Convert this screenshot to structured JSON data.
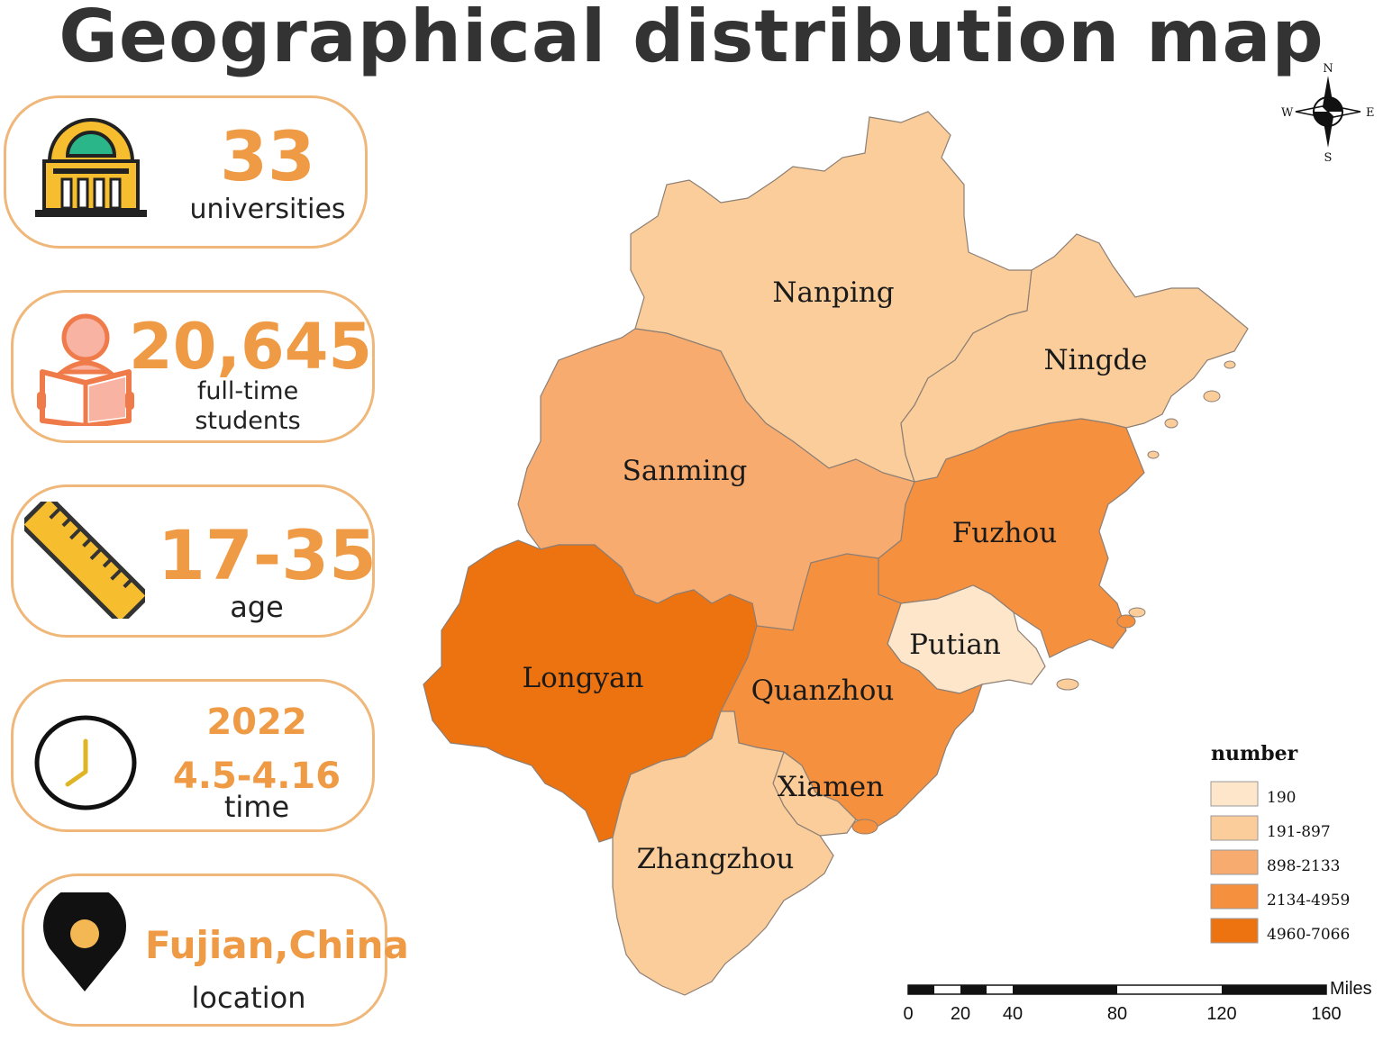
{
  "title": "Geographical distribution map",
  "stats": [
    {
      "value": "33",
      "label": "universities",
      "icon": "university-building-icon"
    },
    {
      "value": "20,645",
      "label_line1": "full-time",
      "label_line2": "students",
      "icon": "student-reading-icon"
    },
    {
      "value": "17-35",
      "label": "age",
      "icon": "ruler-icon"
    },
    {
      "value_line1": "2022",
      "value_line2": "4.5-4.16",
      "label": "time",
      "icon": "clock-icon"
    },
    {
      "value": "Fujian,China",
      "label": "location",
      "icon": "location-pin-icon"
    }
  ],
  "map": {
    "regions": [
      {
        "name": "Nanping",
        "color": "#fbcd9b"
      },
      {
        "name": "Ningde",
        "color": "#fbcd9b"
      },
      {
        "name": "Sanming",
        "color": "#f8ab6f"
      },
      {
        "name": "Fuzhou",
        "color": "#f5903f"
      },
      {
        "name": "Putian",
        "color": "#fde6c9"
      },
      {
        "name": "Longyan",
        "color": "#ed7210"
      },
      {
        "name": "Quanzhou",
        "color": "#f5903f"
      },
      {
        "name": "Xiamen",
        "color": "#fbcd9b"
      },
      {
        "name": "Zhangzhou",
        "color": "#fbcd9b"
      }
    ],
    "legend": {
      "title": "number",
      "items": [
        {
          "label": "190",
          "color": "#fde6c9"
        },
        {
          "label": "191-897",
          "color": "#fbcd9b"
        },
        {
          "label": "898-2133",
          "color": "#f8ab6f"
        },
        {
          "label": "2134-4959",
          "color": "#f5903f"
        },
        {
          "label": "4960-7066",
          "color": "#ed7210"
        }
      ]
    },
    "scale": {
      "unit": "Miles",
      "ticks": [
        "0",
        "20",
        "40",
        "80",
        "120",
        "160"
      ]
    },
    "compass": {
      "n": "N",
      "s": "S",
      "e": "E",
      "w": "W"
    }
  }
}
